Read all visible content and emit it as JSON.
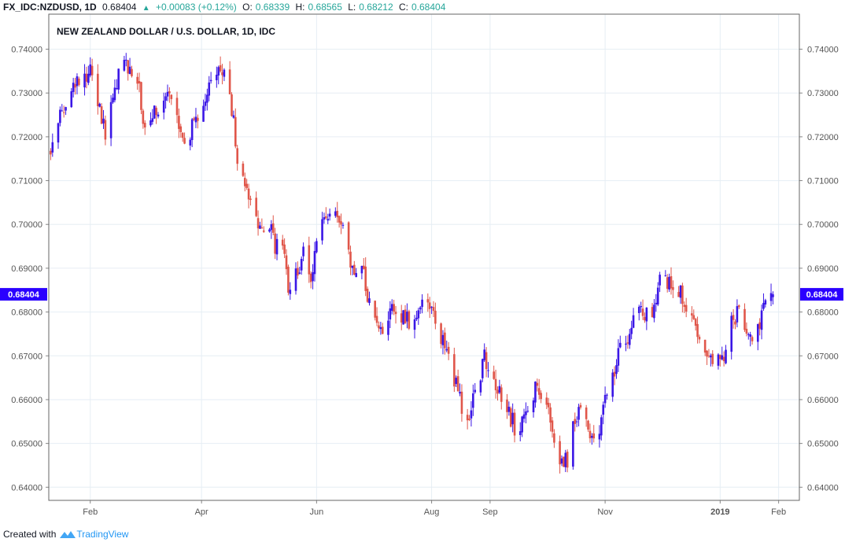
{
  "header": {
    "symbol": "FX_IDC:NZDUSD, 1D",
    "last": "0.68404",
    "change": "+0.00083 (+0.12%)",
    "open_label": "O:",
    "open": "0.68339",
    "high_label": "H:",
    "high": "0.68565",
    "low_label": "L:",
    "low": "0.68212",
    "close_label": "C:",
    "close": "0.68404"
  },
  "footer": {
    "created_with": "Created with",
    "brand": "TradingView"
  },
  "colors": {
    "up": "#3a16e6",
    "down": "#e0564a",
    "grid": "#e6eef4",
    "axis": "#555555",
    "price_label_bg": "#2a00ff"
  },
  "chart_data": {
    "type": "candlestick",
    "title": "NEW ZEALAND DOLLAR / U.S. DOLLAR, 1D, IDC",
    "ylim": [
      0.637,
      0.748
    ],
    "y_ticks": [
      "0.74000",
      "0.73000",
      "0.72000",
      "0.71000",
      "0.70000",
      "0.69000",
      "0.68000",
      "0.67000",
      "0.66000",
      "0.65000",
      "0.64000"
    ],
    "x_ticks": [
      {
        "label": "Feb",
        "date": "2018-02-01",
        "bold": false
      },
      {
        "label": "Apr",
        "date": "2018-04-01",
        "bold": false
      },
      {
        "label": "Jun",
        "date": "2018-06-01",
        "bold": false
      },
      {
        "label": "Aug",
        "date": "2018-08-01",
        "bold": false
      },
      {
        "label": "Sep",
        "date": "2018-09-01",
        "bold": false
      },
      {
        "label": "Nov",
        "date": "2018-11-01",
        "bold": false
      },
      {
        "label": "2019",
        "date": "2019-01-01",
        "bold": true
      },
      {
        "label": "Feb",
        "date": "2019-02-01",
        "bold": false
      }
    ],
    "x_range": [
      "2018-01-10",
      "2019-02-12"
    ],
    "last_price_label": "0.68404",
    "last_price": 0.68404,
    "grid": true,
    "path": [
      [
        "2018-01-11",
        0.7175
      ],
      [
        "2018-01-16",
        0.7265
      ],
      [
        "2018-01-22",
        0.7295
      ],
      [
        "2018-01-26",
        0.7335
      ],
      [
        "2018-02-01",
        0.735
      ],
      [
        "2018-02-06",
        0.7265
      ],
      [
        "2018-02-09",
        0.721
      ],
      [
        "2018-02-14",
        0.7305
      ],
      [
        "2018-02-17",
        0.7385
      ],
      [
        "2018-02-22",
        0.735
      ],
      [
        "2018-02-27",
        0.7305
      ],
      [
        "2018-03-02",
        0.721
      ],
      [
        "2018-03-06",
        0.7245
      ],
      [
        "2018-03-10",
        0.7275
      ],
      [
        "2018-03-15",
        0.7285
      ],
      [
        "2018-03-20",
        0.722
      ],
      [
        "2018-03-24",
        0.7195
      ],
      [
        "2018-03-29",
        0.7245
      ],
      [
        "2018-04-02",
        0.7285
      ],
      [
        "2018-04-06",
        0.734
      ],
      [
        "2018-04-10",
        0.7365
      ],
      [
        "2018-04-13",
        0.7345
      ],
      [
        "2018-04-17",
        0.726
      ],
      [
        "2018-04-20",
        0.716
      ],
      [
        "2018-04-24",
        0.7075
      ],
      [
        "2018-04-28",
        0.7055
      ],
      [
        "2018-05-02",
        0.6995
      ],
      [
        "2018-05-06",
        0.7015
      ],
      [
        "2018-05-10",
        0.6955
      ],
      [
        "2018-05-14",
        0.6935
      ],
      [
        "2018-05-17",
        0.6865
      ],
      [
        "2018-05-21",
        0.6895
      ],
      [
        "2018-05-25",
        0.693
      ],
      [
        "2018-05-29",
        0.689
      ],
      [
        "2018-06-02",
        0.6975
      ],
      [
        "2018-06-06",
        0.701
      ],
      [
        "2018-06-10",
        0.703
      ],
      [
        "2018-06-14",
        0.6995
      ],
      [
        "2018-06-18",
        0.6935
      ],
      [
        "2018-06-22",
        0.688
      ],
      [
        "2018-06-26",
        0.6885
      ],
      [
        "2018-06-30",
        0.679
      ],
      [
        "2018-07-04",
        0.676
      ],
      [
        "2018-07-08",
        0.677
      ],
      [
        "2018-07-12",
        0.681
      ],
      [
        "2018-07-16",
        0.679
      ],
      [
        "2018-07-20",
        0.6775
      ],
      [
        "2018-07-24",
        0.68
      ],
      [
        "2018-07-28",
        0.682
      ],
      [
        "2018-08-01",
        0.6805
      ],
      [
        "2018-08-05",
        0.674
      ],
      [
        "2018-08-09",
        0.672
      ],
      [
        "2018-08-13",
        0.664
      ],
      [
        "2018-08-17",
        0.659
      ],
      [
        "2018-08-21",
        0.6565
      ],
      [
        "2018-08-25",
        0.663
      ],
      [
        "2018-08-29",
        0.6695
      ],
      [
        "2018-09-02",
        0.666
      ],
      [
        "2018-09-06",
        0.661
      ],
      [
        "2018-09-10",
        0.657
      ],
      [
        "2018-09-14",
        0.654
      ],
      [
        "2018-09-18",
        0.6545
      ],
      [
        "2018-09-22",
        0.659
      ],
      [
        "2018-09-26",
        0.664
      ],
      [
        "2018-09-30",
        0.6605
      ],
      [
        "2018-10-04",
        0.6545
      ],
      [
        "2018-10-08",
        0.645
      ],
      [
        "2018-10-12",
        0.6465
      ],
      [
        "2018-10-16",
        0.6555
      ],
      [
        "2018-10-20",
        0.658
      ],
      [
        "2018-10-24",
        0.652
      ],
      [
        "2018-10-28",
        0.6505
      ],
      [
        "2018-11-01",
        0.662
      ],
      [
        "2018-11-05",
        0.6655
      ],
      [
        "2018-11-09",
        0.672
      ],
      [
        "2018-11-13",
        0.6725
      ],
      [
        "2018-11-17",
        0.682
      ],
      [
        "2018-11-21",
        0.6795
      ],
      [
        "2018-11-25",
        0.679
      ],
      [
        "2018-11-29",
        0.686
      ],
      [
        "2018-12-03",
        0.6875
      ],
      [
        "2018-12-07",
        0.6855
      ],
      [
        "2018-12-11",
        0.684
      ],
      [
        "2018-12-15",
        0.6815
      ],
      [
        "2018-12-19",
        0.6755
      ],
      [
        "2018-12-23",
        0.673
      ],
      [
        "2018-12-27",
        0.669
      ],
      [
        "2018-12-31",
        0.672
      ],
      [
        "2019-01-03",
        0.6695
      ],
      [
        "2019-01-07",
        0.677
      ],
      [
        "2019-01-11",
        0.6805
      ],
      [
        "2019-01-15",
        0.677
      ],
      [
        "2019-01-19",
        0.6745
      ],
      [
        "2019-01-23",
        0.6785
      ],
      [
        "2019-01-26",
        0.6835
      ],
      [
        "2019-01-29",
        0.684
      ]
    ]
  }
}
